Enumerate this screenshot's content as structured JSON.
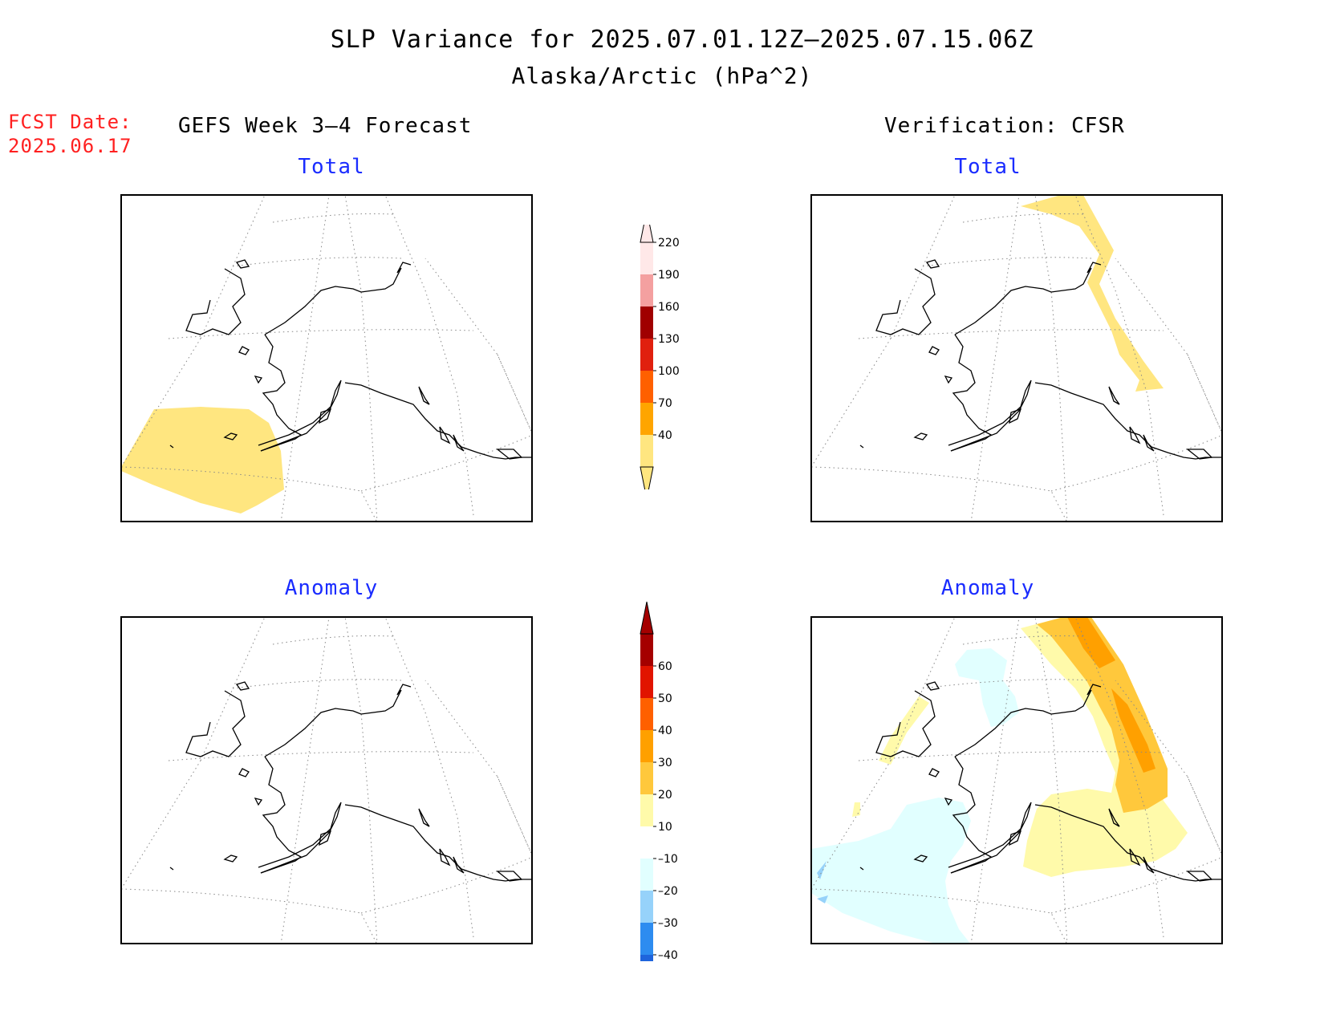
{
  "header": {
    "title_line1": "SLP Variance for 2025.07.01.12Z–2025.07.15.06Z",
    "title_line2": "Alaska/Arctic (hPa^2)",
    "fcst_label": "FCST Date:",
    "fcst_value": "2025.06.17"
  },
  "columns": {
    "left_heading": "GEFS Week 3–4 Forecast",
    "right_heading": "Verification: CFSR"
  },
  "panels": {
    "top_left_title": "Total",
    "top_right_title": "Total",
    "bottom_left_title": "Anomaly",
    "bottom_right_title": "Anomaly"
  },
  "colorbars": {
    "total": {
      "labels": [
        "40",
        "70",
        "100",
        "130",
        "160",
        "190",
        "220"
      ],
      "colors": [
        "#ffe680",
        "#ffa500",
        "#ff6000",
        "#e0200e",
        "#a00000",
        "#f4a0a0",
        "#ffe8e8"
      ]
    },
    "anomaly": {
      "labels": [
        "–40",
        "–30",
        "–20",
        "–10",
        "10",
        "20",
        "30",
        "40",
        "50",
        "60"
      ],
      "colors": [
        "#1e64dc",
        "#2d8cf0",
        "#96d2fa",
        "#e1ffff",
        "#ffffff",
        "#fffaaa",
        "#ffc83c",
        "#ffa000",
        "#ff6000",
        "#e11400",
        "#a50000"
      ]
    }
  }
}
